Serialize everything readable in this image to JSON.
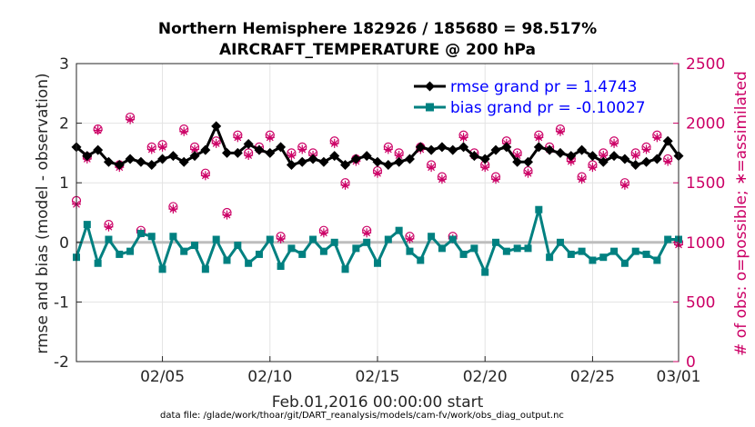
{
  "chart_data": {
    "type": "line",
    "title_line1": "Northern Hemisphere 182926 / 185680 = 98.517%",
    "title_line2": "AIRCRAFT_TEMPERATURE @ 200 hPa",
    "xlabel": "Feb.01,2016 00:00:00 start",
    "ylabel_left": "rmse and bias (model - observation)",
    "ylabel_right": "# of obs: o=possible; ∗=assimilated",
    "footnote": "data file: /glade/work/thoar/git/DART_reanalysis/models/cam-fv/work/obs_diag_output.nc",
    "xlim": [
      1,
      29
    ],
    "ylim_left": [
      -2,
      3
    ],
    "ylim_right": [
      0,
      2500
    ],
    "x_ticks": [
      {
        "value": 5,
        "label": "02/05"
      },
      {
        "value": 10,
        "label": "02/10"
      },
      {
        "value": 15,
        "label": "02/15"
      },
      {
        "value": 20,
        "label": "02/20"
      },
      {
        "value": 25,
        "label": "02/25"
      },
      {
        "value": 29,
        "label": "03/01"
      }
    ],
    "y_ticks_left": [
      {
        "value": -2,
        "label": "-2"
      },
      {
        "value": -1,
        "label": "-1"
      },
      {
        "value": 0,
        "label": "0"
      },
      {
        "value": 1,
        "label": "1"
      },
      {
        "value": 2,
        "label": "2"
      },
      {
        "value": 3,
        "label": "3"
      }
    ],
    "y_ticks_right": [
      {
        "value": 0,
        "label": "0"
      },
      {
        "value": 500,
        "label": "500"
      },
      {
        "value": 1000,
        "label": "1000"
      },
      {
        "value": 1500,
        "label": "1500"
      },
      {
        "value": 2000,
        "label": "2000"
      },
      {
        "value": 2500,
        "label": "2500"
      }
    ],
    "grid": true,
    "zero_line": true,
    "legend_position": "top-right",
    "series": [
      {
        "name": "rmse grand pr = 1.4743",
        "color": "#000000",
        "marker": "diamond",
        "x": [
          1.0,
          1.5,
          2.0,
          2.5,
          3.0,
          3.5,
          4.0,
          4.5,
          5.0,
          5.5,
          6.0,
          6.5,
          7.0,
          7.5,
          8.0,
          8.5,
          9.0,
          9.5,
          10.0,
          10.5,
          11.0,
          11.5,
          12.0,
          12.5,
          13.0,
          13.5,
          14.0,
          14.5,
          15.0,
          15.5,
          16.0,
          16.5,
          17.0,
          17.5,
          18.0,
          18.5,
          19.0,
          19.5,
          20.0,
          20.5,
          21.0,
          21.5,
          22.0,
          22.5,
          23.0,
          23.5,
          24.0,
          24.5,
          25.0,
          25.5,
          26.0,
          26.5,
          27.0,
          27.5,
          28.0,
          28.5,
          29.0
        ],
        "y": [
          1.6,
          1.45,
          1.55,
          1.35,
          1.3,
          1.4,
          1.35,
          1.3,
          1.4,
          1.45,
          1.35,
          1.45,
          1.55,
          1.95,
          1.5,
          1.5,
          1.65,
          1.55,
          1.5,
          1.6,
          1.3,
          1.35,
          1.4,
          1.35,
          1.45,
          1.3,
          1.4,
          1.45,
          1.35,
          1.3,
          1.35,
          1.4,
          1.6,
          1.55,
          1.6,
          1.55,
          1.6,
          1.45,
          1.4,
          1.55,
          1.6,
          1.35,
          1.35,
          1.6,
          1.55,
          1.5,
          1.45,
          1.55,
          1.45,
          1.35,
          1.45,
          1.4,
          1.3,
          1.35,
          1.4,
          1.7,
          1.45
        ]
      },
      {
        "name": "bias grand pr = -0.10027",
        "color": "#008080",
        "marker": "square",
        "x": [
          1.0,
          1.5,
          2.0,
          2.5,
          3.0,
          3.5,
          4.0,
          4.5,
          5.0,
          5.5,
          6.0,
          6.5,
          7.0,
          7.5,
          8.0,
          8.5,
          9.0,
          9.5,
          10.0,
          10.5,
          11.0,
          11.5,
          12.0,
          12.5,
          13.0,
          13.5,
          14.0,
          14.5,
          15.0,
          15.5,
          16.0,
          16.5,
          17.0,
          17.5,
          18.0,
          18.5,
          19.0,
          19.5,
          20.0,
          20.5,
          21.0,
          21.5,
          22.0,
          22.5,
          23.0,
          23.5,
          24.0,
          24.5,
          25.0,
          25.5,
          26.0,
          26.5,
          27.0,
          27.5,
          28.0,
          28.5,
          29.0
        ],
        "y": [
          -0.25,
          0.3,
          -0.35,
          0.05,
          -0.2,
          -0.15,
          0.15,
          0.1,
          -0.45,
          0.1,
          -0.15,
          -0.05,
          -0.45,
          0.05,
          -0.3,
          -0.05,
          -0.35,
          -0.2,
          0.05,
          -0.4,
          -0.1,
          -0.2,
          0.05,
          -0.15,
          0.0,
          -0.45,
          -0.1,
          0.0,
          -0.35,
          0.05,
          0.2,
          -0.15,
          -0.3,
          0.1,
          -0.1,
          0.05,
          -0.2,
          -0.1,
          -0.5,
          0.0,
          -0.15,
          -0.1,
          -0.1,
          0.55,
          -0.25,
          0.0,
          -0.2,
          -0.15,
          -0.3,
          -0.25,
          -0.15,
          -0.35,
          -0.15,
          -0.2,
          -0.3,
          0.05,
          0.05
        ]
      },
      {
        "name": "possible",
        "color": "#cc0066",
        "marker": "circle",
        "axis": "right",
        "x": [
          1.0,
          1.5,
          2.0,
          2.5,
          3.0,
          3.5,
          4.0,
          4.5,
          5.0,
          5.5,
          6.0,
          6.5,
          7.0,
          7.5,
          8.0,
          8.5,
          9.0,
          9.5,
          10.0,
          10.5,
          11.0,
          11.5,
          12.0,
          12.5,
          13.0,
          13.5,
          14.0,
          14.5,
          15.0,
          15.5,
          16.0,
          16.5,
          17.0,
          17.5,
          18.0,
          18.5,
          19.0,
          19.5,
          20.0,
          20.5,
          21.0,
          21.5,
          22.0,
          22.5,
          23.0,
          23.5,
          24.0,
          24.5,
          25.0,
          25.5,
          26.0,
          26.5,
          27.0,
          27.5,
          28.0,
          28.5,
          29.0
        ],
        "y": [
          1350,
          1720,
          1950,
          1150,
          1650,
          2050,
          1100,
          1800,
          1820,
          1300,
          1950,
          1800,
          1580,
          1850,
          1250,
          1900,
          1750,
          1800,
          1900,
          1050,
          1750,
          1800,
          1750,
          1100,
          1850,
          1500,
          1700,
          1100,
          1600,
          1800,
          1750,
          1050,
          1800,
          1650,
          1550,
          1050,
          1900,
          1750,
          1650,
          1550,
          1850,
          1750,
          1600,
          1900,
          1800,
          1950,
          1700,
          1550,
          1650,
          1750,
          1850,
          1500,
          1750,
          1800,
          1900,
          1700,
          1000
        ]
      },
      {
        "name": "assimilated",
        "color": "#cc0066",
        "marker": "asterisk",
        "axis": "right",
        "x": [
          1.0,
          1.5,
          2.0,
          2.5,
          3.0,
          3.5,
          4.0,
          4.5,
          5.0,
          5.5,
          6.0,
          6.5,
          7.0,
          7.5,
          8.0,
          8.5,
          9.0,
          9.5,
          10.0,
          10.5,
          11.0,
          11.5,
          12.0,
          12.5,
          13.0,
          13.5,
          14.0,
          14.5,
          15.0,
          15.5,
          16.0,
          16.5,
          17.0,
          17.5,
          18.0,
          18.5,
          19.0,
          19.5,
          20.0,
          20.5,
          21.0,
          21.5,
          22.0,
          22.5,
          23.0,
          23.5,
          24.0,
          24.5,
          25.0,
          25.5,
          26.0,
          26.5,
          27.0,
          27.5,
          28.0,
          28.5,
          29.0
        ],
        "y": [
          1320,
          1700,
          1940,
          1130,
          1630,
          2030,
          1080,
          1780,
          1800,
          1280,
          1930,
          1780,
          1560,
          1830,
          1230,
          1880,
          1730,
          1780,
          1880,
          1030,
          1730,
          1780,
          1730,
          1080,
          1830,
          1480,
          1680,
          1080,
          1580,
          1780,
          1730,
          1030,
          1780,
          1630,
          1530,
          1030,
          1880,
          1730,
          1630,
          1530,
          1830,
          1730,
          1580,
          1880,
          1780,
          1930,
          1680,
          1530,
          1630,
          1730,
          1830,
          1480,
          1730,
          1780,
          1880,
          1680,
          980
        ]
      }
    ]
  }
}
